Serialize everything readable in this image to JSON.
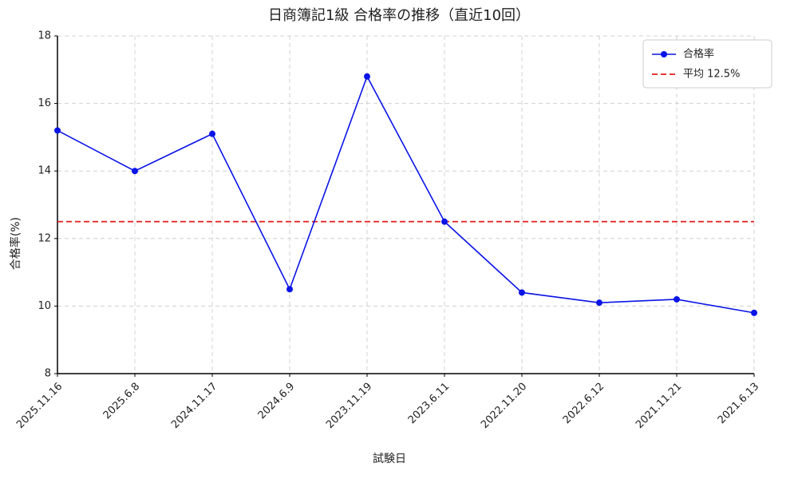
{
  "chart_data": {
    "type": "line",
    "title": "日商簿記1級 合格率の推移（直近10回）",
    "x_label": "試験日",
    "y_label": "合格率(%)",
    "categories": [
      "2025.11.16",
      "2025.6.8",
      "2024.11.17",
      "2024.6.9",
      "2023.11.19",
      "2023.6.11",
      "2022.11.20",
      "2022.6.12",
      "2021.11.21",
      "2021.6.13"
    ],
    "series": [
      {
        "name": "合格率",
        "color": "#0a14e6",
        "values": [
          15.2,
          14.0,
          15.1,
          10.5,
          16.8,
          12.5,
          10.4,
          10.1,
          10.2,
          9.8
        ]
      }
    ],
    "reference_lines": [
      {
        "name": "平均 12.5%",
        "value": 12.5,
        "color": "#e41a1c"
      }
    ],
    "ylim": [
      8,
      18
    ],
    "yticks": [
      8,
      10,
      12,
      14,
      16,
      18
    ],
    "grid": true,
    "legend": "upper right"
  }
}
